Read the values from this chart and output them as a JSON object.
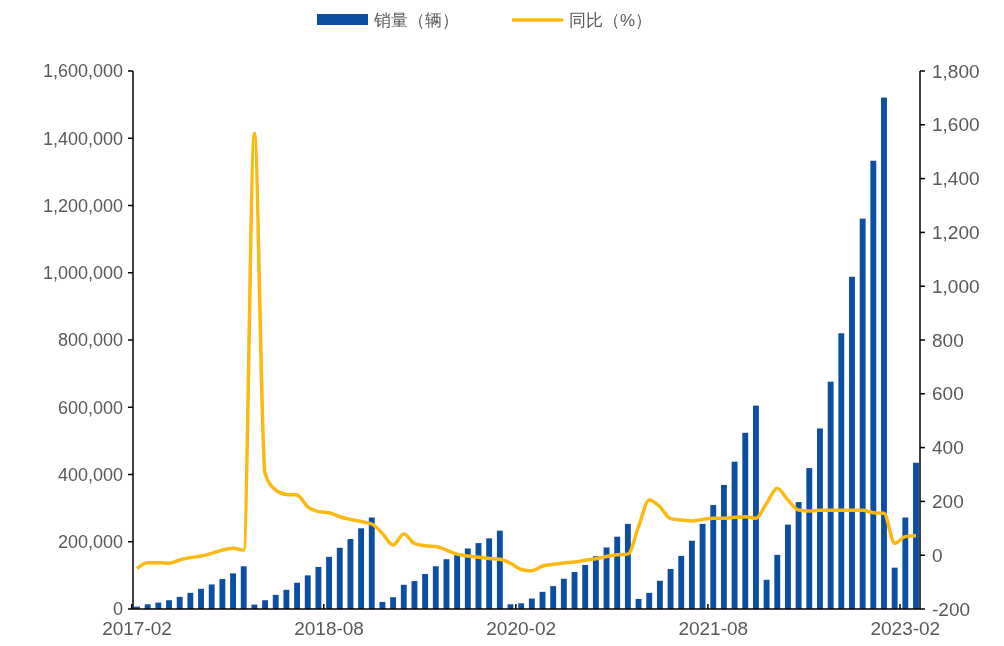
{
  "chart_data": {
    "type": "bar",
    "categories": [
      "2017-02",
      null,
      null,
      null,
      null,
      null,
      null,
      null,
      null,
      null,
      null,
      null,
      null,
      null,
      null,
      null,
      null,
      null,
      "2018-08",
      null,
      null,
      null,
      null,
      null,
      null,
      null,
      null,
      null,
      null,
      null,
      null,
      null,
      null,
      null,
      null,
      null,
      "2020-02",
      null,
      null,
      null,
      null,
      null,
      null,
      null,
      null,
      null,
      null,
      null,
      null,
      null,
      null,
      null,
      null,
      null,
      "2021-08",
      null,
      null,
      null,
      null,
      null,
      null,
      null,
      null,
      null,
      null,
      null,
      null,
      null,
      null,
      null,
      null,
      null,
      "2023-02",
      null
    ],
    "series": [
      {
        "name": "销量（辆）",
        "color": "#0b4ea2",
        "values": [
          7000,
          14000,
          19000,
          26000,
          36000,
          48000,
          60000,
          73000,
          89000,
          106000,
          127000,
          13000,
          26000,
          42000,
          57000,
          78000,
          100000,
          125000,
          155000,
          182000,
          208000,
          240000,
          272000,
          21000,
          35000,
          72000,
          83000,
          104000,
          127000,
          148000,
          162000,
          180000,
          196000,
          210000,
          233000,
          14000,
          17000,
          31000,
          51000,
          68000,
          90000,
          110000,
          131000,
          157000,
          183000,
          215000,
          253000,
          30000,
          48000,
          84000,
          119000,
          158000,
          203000,
          253000,
          309000,
          369000,
          438000,
          524000,
          605000,
          87000,
          161000,
          251000,
          318000,
          419000,
          537000,
          676000,
          820000,
          988000,
          1161000,
          1333000,
          1521000,
          123000,
          272000,
          435000
        ]
      },
      {
        "name": "同比（%）",
        "type": "line",
        "axis": "y2",
        "color": "#fbb912",
        "values": [
          -49,
          -28,
          -28,
          -30,
          -18,
          -9,
          -3,
          7,
          19,
          26,
          19,
          1568,
          304,
          242,
          226,
          224,
          180,
          162,
          158,
          143,
          133,
          125,
          116,
          81,
          38,
          79,
          44,
          35,
          32,
          19,
          4,
          -3,
          -8,
          -12,
          -15,
          -30,
          -53,
          -58,
          -40,
          -34,
          -29,
          -25,
          -19,
          -13,
          -5,
          2,
          4,
          106,
          205,
          180,
          136,
          131,
          127,
          133,
          137,
          137,
          141,
          143,
          137,
          193,
          249,
          205,
          168,
          164,
          167,
          167,
          167,
          167,
          167,
          158,
          156,
          44,
          69,
          72
        ]
      }
    ],
    "ylim": [
      0,
      1600000
    ],
    "yticks": [
      {
        "value": 0,
        "label": "0"
      },
      {
        "value": 200000,
        "label": "200,000"
      },
      {
        "value": 400000,
        "label": "400,000"
      },
      {
        "value": 600000,
        "label": "600,000"
      },
      {
        "value": 800000,
        "label": "800,000"
      },
      {
        "value": 1000000,
        "label": "1,000,000"
      },
      {
        "value": 1200000,
        "label": "1,200,000"
      },
      {
        "value": 1400000,
        "label": "1,400,000"
      },
      {
        "value": 1600000,
        "label": "1,600,000"
      }
    ],
    "y2lim": [
      -200,
      1800
    ],
    "y2ticks": [
      -200,
      0,
      200,
      400,
      600,
      800,
      {
        "value": 1000,
        "label": "1,000"
      },
      {
        "value": 1200,
        "label": "1,200"
      },
      {
        "value": 1400,
        "label": "1,400"
      },
      {
        "value": 1600,
        "label": "1,600"
      },
      {
        "value": 1800,
        "label": "1,800"
      }
    ],
    "grid": false,
    "legend": "top"
  }
}
